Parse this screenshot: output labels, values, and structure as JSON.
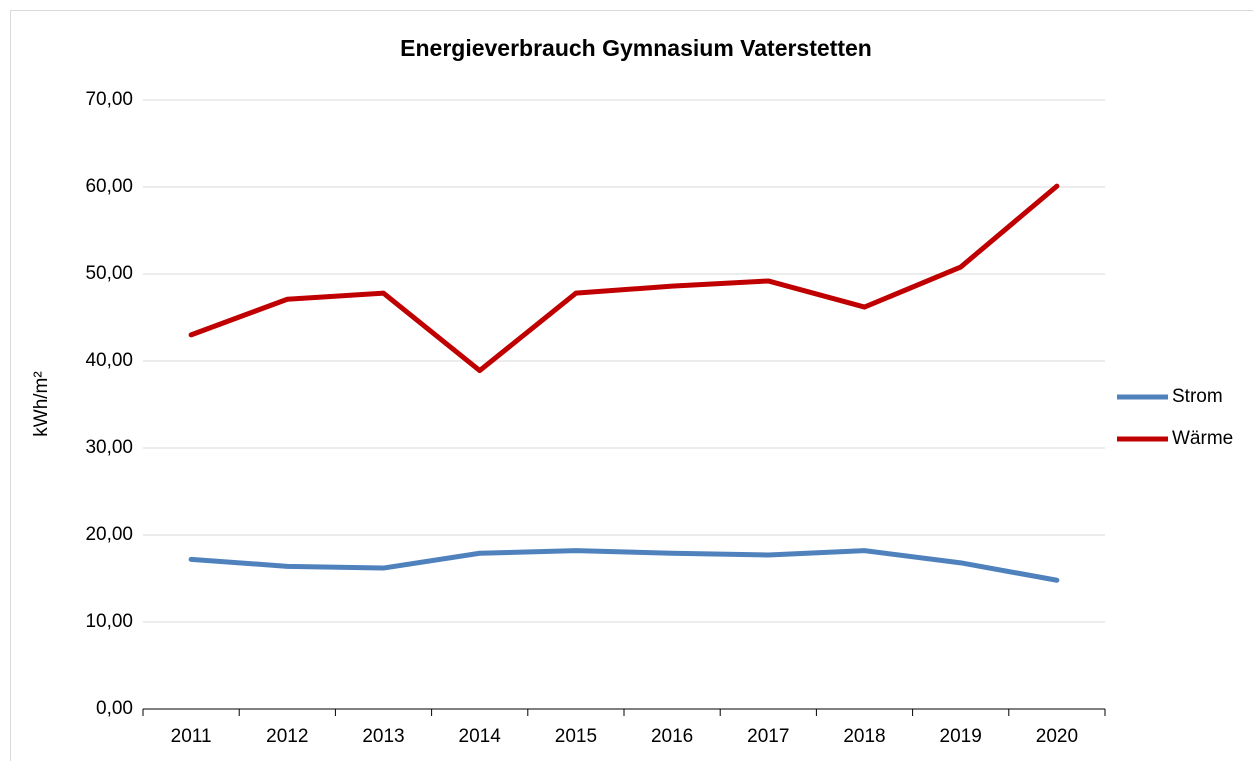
{
  "chart_data": {
    "type": "line",
    "title": "Energieverbrauch Gymnasium Vaterstetten",
    "y_label": "kWh/m²",
    "categories": [
      "2011",
      "2012",
      "2013",
      "2014",
      "2015",
      "2016",
      "2017",
      "2018",
      "2019",
      "2020"
    ],
    "series": [
      {
        "name": "Strom",
        "color": "#4f81bd",
        "values": [
          17.2,
          16.4,
          16.2,
          17.9,
          18.2,
          17.9,
          17.7,
          18.2,
          16.8,
          14.8
        ]
      },
      {
        "name": "Wärme",
        "color": "#c00000",
        "values": [
          43.0,
          47.1,
          47.8,
          38.9,
          47.8,
          48.6,
          49.2,
          46.2,
          50.8,
          60.1
        ]
      }
    ],
    "ylim": [
      0,
      70
    ],
    "yticks": [
      {
        "value": 0,
        "label": "0,00"
      },
      {
        "value": 10,
        "label": "10,00"
      },
      {
        "value": 20,
        "label": "20,00"
      },
      {
        "value": 30,
        "label": "30,00"
      },
      {
        "value": 40,
        "label": "40,00"
      },
      {
        "value": 50,
        "label": "50,00"
      },
      {
        "value": 60,
        "label": "60,00"
      },
      {
        "value": 70,
        "label": "70,00"
      }
    ],
    "grid": true,
    "legend": "right"
  }
}
